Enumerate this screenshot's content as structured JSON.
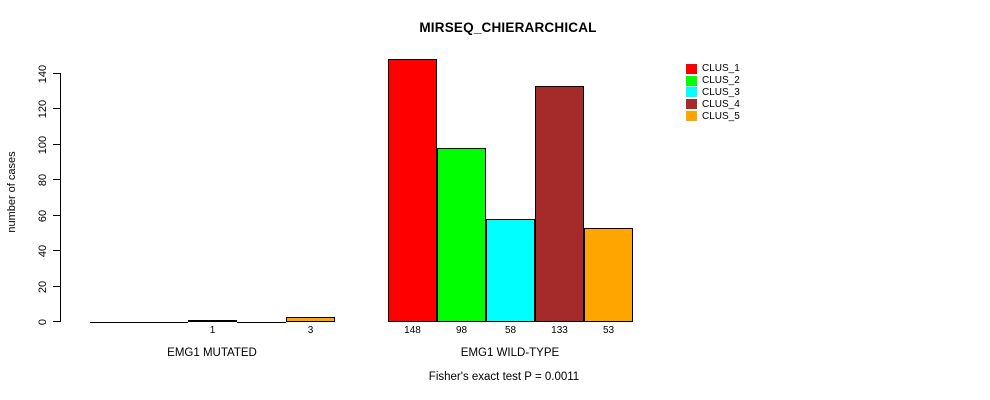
{
  "chart_data": {
    "type": "bar",
    "title": "MIRSEQ_CHIERARCHICAL",
    "xlabel": "",
    "ylabel": "number of cases",
    "ylim": [
      0,
      140
    ],
    "yticks": [
      0,
      20,
      40,
      60,
      80,
      100,
      120,
      140
    ],
    "categories": [
      "EMG1 MUTATED",
      "EMG1 WILD-TYPE"
    ],
    "series": [
      {
        "name": "CLUS_1",
        "color": "#FF0000",
        "values": [
          0,
          148
        ]
      },
      {
        "name": "CLUS_2",
        "color": "#00FF00",
        "values": [
          0,
          98
        ]
      },
      {
        "name": "CLUS_3",
        "color": "#00FFFF",
        "values": [
          1,
          58
        ]
      },
      {
        "name": "CLUS_4",
        "color": "#A52A2A",
        "values": [
          0,
          133
        ]
      },
      {
        "name": "CLUS_5",
        "color": "#FFA500",
        "values": [
          3,
          53
        ]
      }
    ],
    "bar_value_labels": "value shown under each nonzero bar",
    "legend": {
      "position": "top-right",
      "entries": [
        "CLUS_1",
        "CLUS_2",
        "CLUS_3",
        "CLUS_4",
        "CLUS_5"
      ]
    },
    "annotation": "Fisher's exact test P = 0.0011",
    "grid": false,
    "background": "#ffffff",
    "axis_color": "#000000"
  }
}
